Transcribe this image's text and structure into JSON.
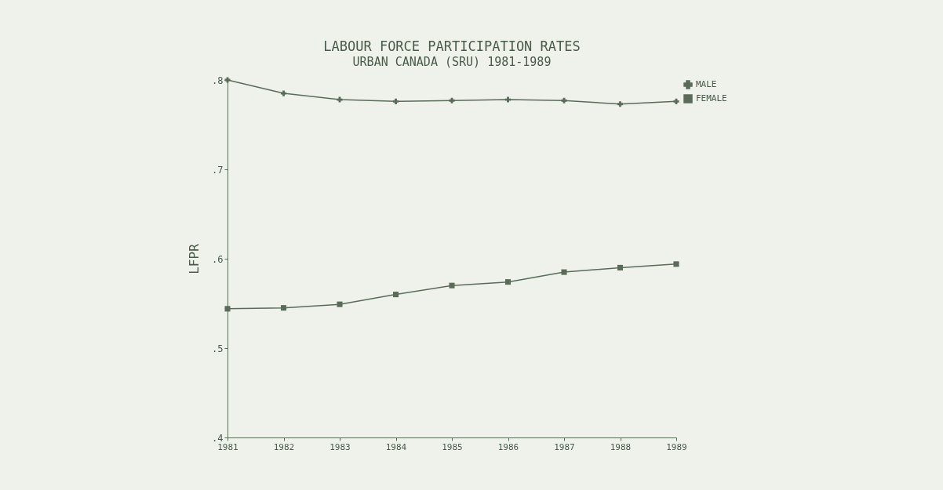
{
  "chart_data": {
    "type": "line",
    "title": "LABOUR FORCE PARTICIPATION RATES",
    "subtitle": "URBAN CANADA (SRU) 1981-1989",
    "ylabel": "LFPR",
    "x": [
      1981,
      1982,
      1983,
      1984,
      1985,
      1986,
      1987,
      1988,
      1989
    ],
    "series": [
      {
        "name": "MALE",
        "color": "#5a6b5a",
        "marker": "cross",
        "values": [
          0.8,
          0.785,
          0.778,
          0.776,
          0.777,
          0.778,
          0.777,
          0.773,
          0.776
        ]
      },
      {
        "name": "FEMALE",
        "color": "#5a6b5a",
        "marker": "square",
        "values": [
          0.544,
          0.545,
          0.549,
          0.56,
          0.57,
          0.574,
          0.585,
          0.59,
          0.594
        ]
      }
    ],
    "xlim": [
      1981,
      1989
    ],
    "xticks": [
      1981,
      1982,
      1983,
      1984,
      1985,
      1986,
      1987,
      1988,
      1989
    ],
    "ylim": [
      0.4,
      0.8
    ],
    "yticks": [
      {
        "value": 0.4,
        "label": ".4"
      },
      {
        "value": 0.5,
        "label": ".5"
      },
      {
        "value": 0.6,
        "label": ".6"
      },
      {
        "value": 0.7,
        "label": ".7"
      },
      {
        "value": 0.8,
        "label": ".8"
      }
    ],
    "grid": false,
    "legend": "top right",
    "line_style": "solid"
  }
}
